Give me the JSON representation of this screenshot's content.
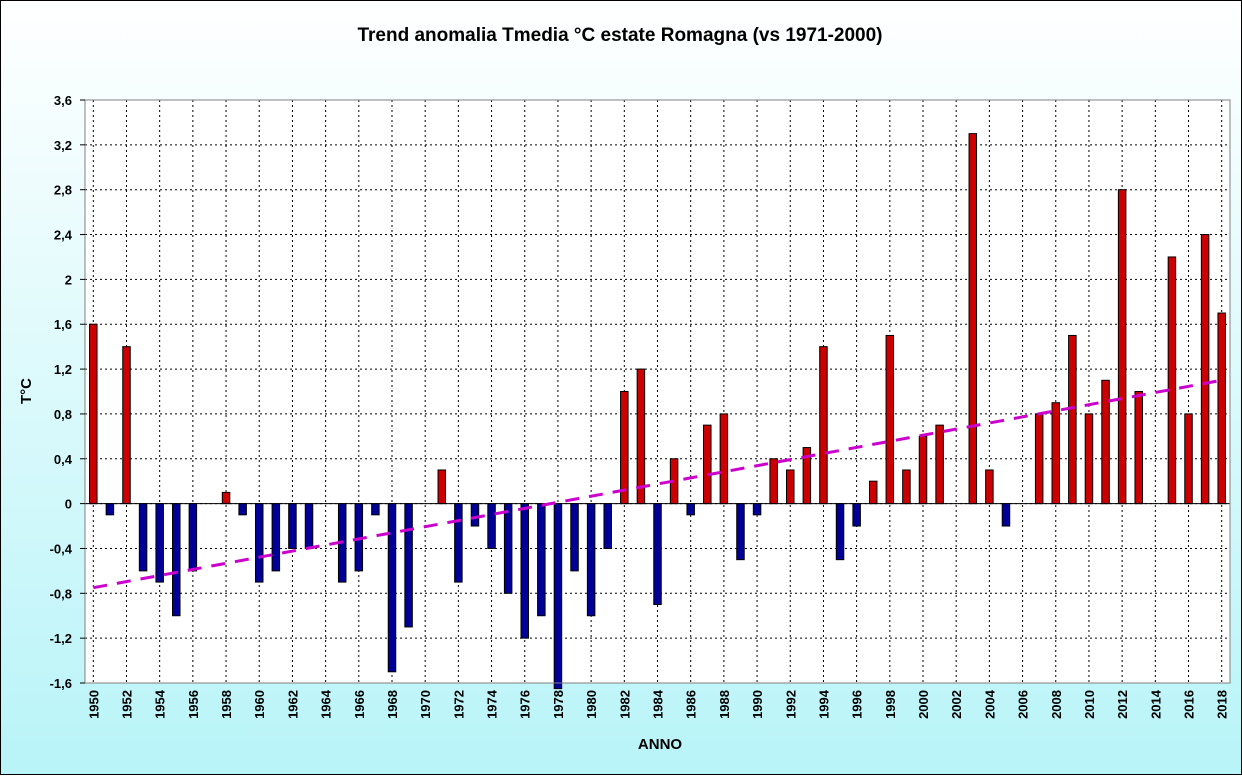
{
  "chart_data": {
    "type": "bar",
    "title": "Trend anomalia Tmedia °C estate Romagna (vs 1971-2000)",
    "xlabel": "ANNO",
    "ylabel": "T°C",
    "ylim": [
      -1.6,
      3.6
    ],
    "yticks": [
      "3,6",
      "3,2",
      "2,8",
      "2,4",
      "2",
      "1,6",
      "1,2",
      "0,8",
      "0,4",
      "0",
      "-0,4",
      "-0,8",
      "-1,2",
      "-1,6"
    ],
    "grid": true,
    "x": [
      1950,
      1951,
      1952,
      1953,
      1954,
      1955,
      1956,
      1957,
      1958,
      1959,
      1960,
      1961,
      1962,
      1963,
      1964,
      1965,
      1966,
      1967,
      1968,
      1969,
      1970,
      1971,
      1972,
      1973,
      1974,
      1975,
      1976,
      1977,
      1978,
      1979,
      1980,
      1981,
      1982,
      1983,
      1984,
      1985,
      1986,
      1987,
      1988,
      1989,
      1990,
      1991,
      1992,
      1993,
      1994,
      1995,
      1996,
      1997,
      1998,
      1999,
      2000,
      2001,
      2002,
      2003,
      2004,
      2005,
      2006,
      2007,
      2008,
      2009,
      2010,
      2011,
      2012,
      2013,
      2014,
      2015,
      2016,
      2017,
      2018
    ],
    "xtick_labels": [
      "1950",
      "1952",
      "1954",
      "1956",
      "1958",
      "1960",
      "1962",
      "1964",
      "1966",
      "1968",
      "1970",
      "1972",
      "1974",
      "1976",
      "1978",
      "1980",
      "1982",
      "1984",
      "1986",
      "1988",
      "1990",
      "1992",
      "1994",
      "1996",
      "1998",
      "2000",
      "2002",
      "2004",
      "2006",
      "2008",
      "2010",
      "2012",
      "2014",
      "2016",
      "2018"
    ],
    "values": [
      1.6,
      -0.1,
      1.4,
      -0.6,
      -0.7,
      -1.0,
      -0.6,
      0,
      0.1,
      -0.1,
      -0.7,
      -0.6,
      -0.4,
      -0.4,
      0,
      -0.7,
      -0.6,
      -0.1,
      -1.5,
      -1.1,
      0,
      0.3,
      -0.7,
      -0.2,
      -0.4,
      -0.8,
      -1.2,
      -1.0,
      -1.65,
      -0.6,
      -1.0,
      -0.4,
      1.0,
      1.2,
      -0.9,
      0.4,
      -0.1,
      0.7,
      0.8,
      -0.5,
      -0.1,
      0.4,
      0.3,
      0.5,
      1.4,
      -0.5,
      -0.2,
      0.2,
      1.5,
      0.3,
      0.6,
      0.7,
      0,
      3.3,
      0.3,
      -0.2,
      0,
      0.8,
      0.9,
      1.5,
      0.8,
      1.1,
      2.8,
      1.0,
      0,
      2.2,
      0.8,
      2.4,
      1.7
    ],
    "trend": {
      "start": -0.75,
      "end": 1.1
    },
    "colors": {
      "positive": "#cc0000",
      "negative": "#000099",
      "trend": "#cc00cc",
      "plot_bg": "#ffffff"
    }
  }
}
